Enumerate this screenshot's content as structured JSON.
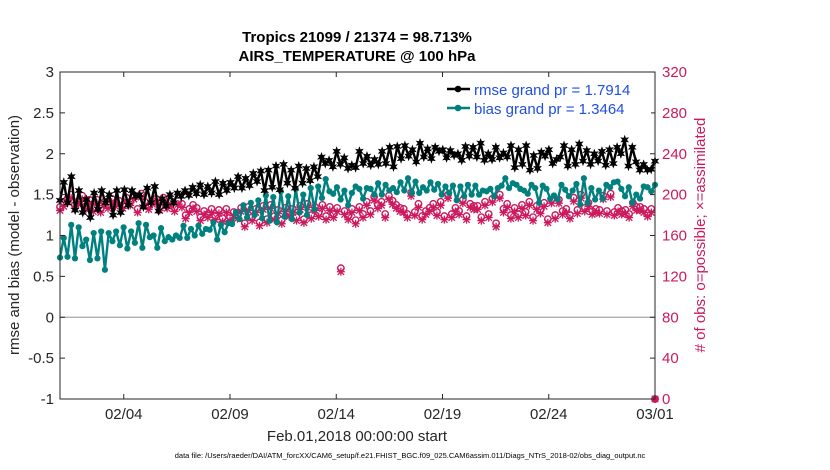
{
  "chart_data": {
    "type": "line",
    "title": "Tropics 21099 / 21374 = 98.713%",
    "subtitle": "AIRS_TEMPERATURE @ 100 hPa",
    "xlabel": "Feb.01,2018 00:00:00 start",
    "ylabel": "rmse and bias (model - observation)",
    "ylabel_right": "# of obs: o=possible; ×=assimilated",
    "footer": "data file: /Users/raeder/DAI/ATM_forcXX/CAM6_setup/f.e21.FHIST_BGC.f09_025.CAM6assim.011/Diags_NTrS_2018-02/obs_diag_output.nc",
    "x_range_days": [
      0,
      28
    ],
    "ylim": [
      -1,
      3
    ],
    "ylim_right": [
      0,
      320
    ],
    "x_ticks": [
      {
        "day": 3,
        "label": "02/04"
      },
      {
        "day": 8,
        "label": "02/09"
      },
      {
        "day": 13,
        "label": "02/14"
      },
      {
        "day": 18,
        "label": "02/19"
      },
      {
        "day": 23,
        "label": "02/24"
      },
      {
        "day": 28,
        "label": "03/01"
      }
    ],
    "y_ticks": [
      "-1",
      "-0.5",
      "0",
      "0.5",
      "1",
      "1.5",
      "2",
      "2.5",
      "3"
    ],
    "y_ticks_right": [
      "0",
      "40",
      "80",
      "120",
      "160",
      "200",
      "240",
      "280",
      "320"
    ],
    "series": [
      {
        "name": "rmse grand pr = 1.7914",
        "color": "#000000",
        "marker": "star",
        "values": [
          1.43,
          1.65,
          1.4,
          1.72,
          1.31,
          1.55,
          1.28,
          1.44,
          1.22,
          1.52,
          1.32,
          1.55,
          1.4,
          1.5,
          1.25,
          1.55,
          1.28,
          1.56,
          1.37,
          1.55,
          1.48,
          1.5,
          1.35,
          1.58,
          1.4,
          1.6,
          1.3,
          1.45,
          1.36,
          1.5,
          1.4,
          1.52,
          1.48,
          1.55,
          1.49,
          1.59,
          1.51,
          1.62,
          1.5,
          1.6,
          1.52,
          1.66,
          1.5,
          1.64,
          1.55,
          1.65,
          1.58,
          1.72,
          1.58,
          1.7,
          1.61,
          1.76,
          1.66,
          1.79,
          1.55,
          1.8,
          1.59,
          1.85,
          1.56,
          1.87,
          1.64,
          1.8,
          1.58,
          1.85,
          1.64,
          1.82,
          1.67,
          1.84,
          1.72,
          1.96,
          1.88,
          1.92,
          1.84,
          2.03,
          1.87,
          1.95,
          1.82,
          1.86,
          1.83,
          2.03,
          1.88,
          1.97,
          1.86,
          1.93,
          1.87,
          2.03,
          1.88,
          2.08,
          1.84,
          2.09,
          1.94,
          2.1,
          1.97,
          2.05,
          1.9,
          2.13,
          1.96,
          2.06,
          1.94,
          2.08,
          2.03,
          2.05,
          1.95,
          2.04,
          1.98,
          2.0,
          1.92,
          2.09,
          1.97,
          2.08,
          1.96,
          2.13,
          1.92,
          2.0,
          1.93,
          2.08,
          1.95,
          2.01,
          1.96,
          2.1,
          1.83,
          2.05,
          1.87,
          2.1,
          1.8,
          1.98,
          1.82,
          2.02,
          1.97,
          2.05,
          1.88,
          1.93,
          1.96,
          2.1,
          1.85,
          2.05,
          1.87,
          2.12,
          1.91,
          2.04,
          1.87,
          2.0,
          1.91,
          2.03,
          1.86,
          2.05,
          1.88,
          2.08,
          2.0,
          2.17,
          1.85,
          2.08,
          1.9,
          1.8,
          1.87,
          1.8,
          1.81,
          1.91
        ]
      },
      {
        "name": "bias grand pr = 1.3464",
        "color": "#00807f",
        "marker": "dot",
        "values": [
          0.73,
          0.97,
          0.74,
          1.13,
          0.72,
          1.1,
          0.87,
          0.95,
          0.7,
          1.03,
          0.72,
          1.05,
          0.58,
          1.03,
          0.93,
          1.05,
          0.88,
          1.1,
          0.84,
          1.05,
          0.91,
          1.15,
          0.85,
          1.13,
          0.98,
          1.0,
          0.85,
          1.09,
          0.93,
          0.98,
          0.95,
          1.0,
          0.97,
          1.12,
          0.97,
          1.08,
          1.0,
          1.12,
          1.02,
          1.08,
          1.07,
          1.16,
          0.95,
          1.13,
          1.04,
          1.15,
          1.14,
          1.29,
          1.2,
          1.37,
          1.22,
          1.4,
          1.25,
          1.43,
          1.21,
          1.49,
          1.18,
          1.47,
          1.16,
          1.54,
          1.23,
          1.48,
          1.2,
          1.57,
          1.28,
          1.5,
          1.25,
          1.58,
          1.32,
          1.6,
          1.46,
          1.69,
          1.54,
          1.51,
          1.59,
          1.44,
          1.55,
          1.37,
          1.52,
          1.6,
          1.57,
          1.45,
          1.58,
          1.57,
          1.5,
          1.64,
          1.5,
          1.62,
          1.55,
          1.58,
          1.53,
          1.65,
          1.55,
          1.7,
          1.52,
          1.66,
          1.52,
          1.59,
          1.55,
          1.65,
          1.56,
          1.63,
          1.5,
          1.6,
          1.52,
          1.61,
          1.43,
          1.6,
          1.48,
          1.62,
          1.5,
          1.61,
          1.5,
          1.55,
          1.54,
          1.57,
          1.48,
          1.58,
          1.61,
          1.7,
          1.58,
          1.64,
          1.62,
          1.57,
          1.55,
          1.51,
          1.62,
          1.58,
          1.4,
          1.61,
          1.57,
          1.45,
          1.49,
          1.44,
          1.62,
          1.56,
          1.48,
          1.55,
          1.63,
          1.38,
          1.7,
          1.4,
          1.58,
          1.44,
          1.55,
          1.45,
          1.62,
          1.59,
          1.65,
          1.66,
          1.57,
          1.48,
          1.59,
          1.4,
          1.5,
          1.45,
          1.6,
          1.59,
          1.54,
          1.62
        ]
      }
    ],
    "obs_series": [
      {
        "name": "# obs possible",
        "color": "#cc1a5e",
        "marker": "circle",
        "values": [
          188,
          192,
          196,
          200,
          190,
          194,
          199,
          189,
          195,
          187,
          195,
          186,
          193,
          190,
          196,
          192,
          194,
          190,
          197,
          193,
          199,
          186,
          201,
          193,
          189,
          194,
          196,
          188,
          197,
          190,
          193,
          187,
          194,
          191,
          180,
          186,
          190,
          187,
          178,
          184,
          181,
          186,
          179,
          185,
          177,
          186,
          178,
          183,
          180,
          187,
          172,
          188,
          178,
          186,
          173,
          189,
          176,
          190,
          179,
          185,
          175,
          187,
          182,
          186,
          178,
          189,
          176,
          191,
          180,
          188,
          182,
          190,
          179,
          188,
          181,
          187,
          128,
          184,
          179,
          186,
          175,
          188,
          181,
          193,
          184,
          198,
          190,
          193,
          181,
          199,
          194,
          190,
          187,
          186,
          181,
          202,
          183,
          191,
          179,
          184,
          187,
          191,
          183,
          193,
          179,
          200,
          181,
          187,
          184,
          195,
          179,
          191,
          189,
          189,
          178,
          193,
          181,
          196,
          172,
          200,
          186,
          191,
          180,
          187,
          181,
          190,
          183,
          193,
          178,
          189,
          185,
          192,
          176,
          195,
          180,
          195,
          184,
          186,
          180,
          197,
          185,
          200,
          187,
          192,
          184,
          186,
          185,
          199,
          184,
          201,
          183,
          187,
          184,
          185,
          181,
          192,
          188,
          188,
          186,
          182,
          186,
          0
        ]
      },
      {
        "name": "# obs assimilated",
        "color": "#cc1a5e",
        "marker": "x",
        "values": [
          186,
          190,
          194,
          198,
          188,
          192,
          197,
          187,
          193,
          185,
          193,
          184,
          191,
          188,
          194,
          190,
          192,
          188,
          195,
          191,
          197,
          184,
          199,
          191,
          187,
          192,
          194,
          186,
          195,
          188,
          191,
          185,
          192,
          189,
          178,
          184,
          188,
          185,
          176,
          182,
          179,
          184,
          177,
          183,
          175,
          184,
          176,
          181,
          178,
          185,
          170,
          186,
          176,
          184,
          171,
          187,
          174,
          188,
          177,
          183,
          173,
          185,
          180,
          184,
          176,
          187,
          174,
          189,
          178,
          186,
          180,
          188,
          177,
          186,
          179,
          185,
          126,
          182,
          177,
          184,
          173,
          186,
          179,
          191,
          182,
          196,
          188,
          191,
          179,
          197,
          192,
          188,
          185,
          184,
          179,
          200,
          181,
          189,
          177,
          182,
          185,
          189,
          181,
          191,
          177,
          198,
          179,
          185,
          182,
          193,
          177,
          189,
          187,
          187,
          176,
          191,
          179,
          194,
          170,
          198,
          184,
          189,
          178,
          185,
          179,
          188,
          181,
          191,
          176,
          187,
          183,
          190,
          174,
          193,
          178,
          193,
          182,
          184,
          178,
          195,
          183,
          198,
          185,
          190,
          182,
          184,
          183,
          197,
          182,
          199,
          181,
          185,
          182,
          183,
          179,
          190,
          186,
          186,
          184,
          180,
          184,
          0
        ]
      }
    ],
    "legend_position": "top-right",
    "zero_line": true
  }
}
